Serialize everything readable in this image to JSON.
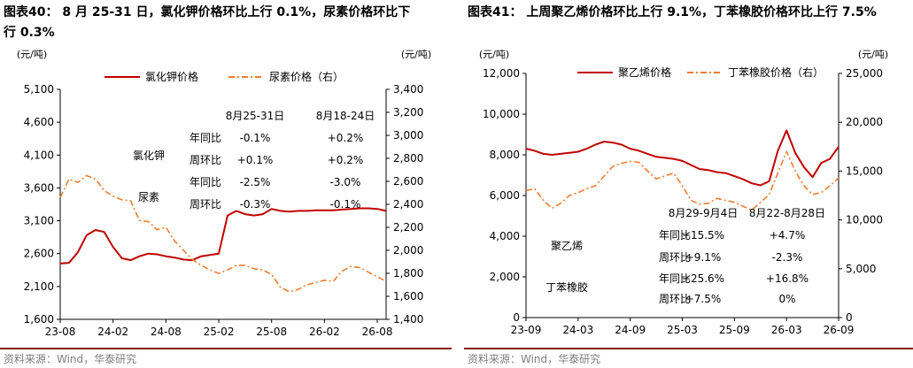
{
  "panels": [
    {
      "title_line1": "图表40：  8 月 25-31 日，氯化钾价格环比上行 0.1%，尿素价格环比下",
      "title_line2": "行 0.3%",
      "source": "资料来源：Wind，华泰研究",
      "chart_data": {
        "type": "line",
        "left_unit": "(元/吨)",
        "right_unit": "(元/吨)",
        "x_ticks": [
          "23-08",
          "24-02",
          "24-08",
          "25-02",
          "25-08",
          "26-02",
          "26-08"
        ],
        "x_range": [
          "2023-08",
          "2026-09"
        ],
        "ylim_left": [
          1600,
          5100
        ],
        "yticks_left": [
          "1,600",
          "2,100",
          "2,600",
          "3,100",
          "3,600",
          "4,100",
          "4,600",
          "5,100"
        ],
        "ylim_right": [
          1400,
          3400
        ],
        "yticks_right": [
          "1,400",
          "1,600",
          "1,800",
          "2,000",
          "2,200",
          "2,400",
          "2,600",
          "2,800",
          "3,000",
          "3,200",
          "3,400"
        ],
        "legend_position": "top",
        "series": [
          {
            "name": "氯化钾价格",
            "axis": "left",
            "color": "#c00000",
            "style": "solid",
            "points": [
              [
                "2023-08",
                2450
              ],
              [
                "2023-09",
                2460
              ],
              [
                "2023-10",
                2620
              ],
              [
                "2023-11",
                2880
              ],
              [
                "2023-12",
                2960
              ],
              [
                "2024-01",
                2930
              ],
              [
                "2024-02",
                2700
              ],
              [
                "2024-03",
                2530
              ],
              [
                "2024-04",
                2500
              ],
              [
                "2024-05",
                2560
              ],
              [
                "2024-06",
                2600
              ],
              [
                "2024-07",
                2590
              ],
              [
                "2024-08",
                2560
              ],
              [
                "2024-09",
                2540
              ],
              [
                "2024-10",
                2510
              ],
              [
                "2024-11",
                2500
              ],
              [
                "2024-12",
                2560
              ],
              [
                "2025-01",
                2580
              ],
              [
                "2025-02",
                2600
              ],
              [
                "2025-03",
                3180
              ],
              [
                "2025-04",
                3250
              ],
              [
                "2025-05",
                3200
              ],
              [
                "2025-06",
                3180
              ],
              [
                "2025-07",
                3200
              ],
              [
                "2025-08",
                3280
              ],
              [
                "2025-09",
                3250
              ],
              [
                "2025-10",
                3240
              ],
              [
                "2025-11",
                3250
              ],
              [
                "2025-12",
                3250
              ],
              [
                "2026-01",
                3260
              ],
              [
                "2026-02",
                3260
              ],
              [
                "2026-03",
                3260
              ],
              [
                "2026-04",
                3270
              ],
              [
                "2026-05",
                3280
              ],
              [
                "2026-06",
                3290
              ],
              [
                "2026-07",
                3290
              ],
              [
                "2026-08",
                3280
              ],
              [
                "2026-09",
                3250
              ]
            ]
          },
          {
            "name": "尿素价格（右）",
            "axis": "right",
            "color": "#ed7d31",
            "style": "dashdot",
            "points": [
              [
                "2023-08",
                2460
              ],
              [
                "2023-09",
                2620
              ],
              [
                "2023-10",
                2590
              ],
              [
                "2023-11",
                2650
              ],
              [
                "2023-12",
                2620
              ],
              [
                "2024-01",
                2520
              ],
              [
                "2024-02",
                2470
              ],
              [
                "2024-03",
                2440
              ],
              [
                "2024-04",
                2430
              ],
              [
                "2024-05",
                2260
              ],
              [
                "2024-06",
                2250
              ],
              [
                "2024-07",
                2180
              ],
              [
                "2024-08",
                2200
              ],
              [
                "2024-09",
                2080
              ],
              [
                "2024-10",
                2000
              ],
              [
                "2024-11",
                1920
              ],
              [
                "2024-12",
                1870
              ],
              [
                "2025-01",
                1830
              ],
              [
                "2025-02",
                1800
              ],
              [
                "2025-03",
                1830
              ],
              [
                "2025-04",
                1870
              ],
              [
                "2025-05",
                1870
              ],
              [
                "2025-06",
                1840
              ],
              [
                "2025-07",
                1830
              ],
              [
                "2025-08",
                1790
              ],
              [
                "2025-09",
                1680
              ],
              [
                "2025-10",
                1640
              ],
              [
                "2025-11",
                1660
              ],
              [
                "2025-12",
                1700
              ],
              [
                "2026-01",
                1720
              ],
              [
                "2026-02",
                1740
              ],
              [
                "2026-03",
                1730
              ],
              [
                "2026-04",
                1820
              ],
              [
                "2026-05",
                1860
              ],
              [
                "2026-06",
                1850
              ],
              [
                "2026-07",
                1810
              ],
              [
                "2026-08",
                1770
              ],
              [
                "2026-09",
                1730
              ]
            ]
          }
        ],
        "table": {
          "col_headers": [
            "8月25-31日",
            "8月18-24日"
          ],
          "groups": [
            {
              "name": "氯化钾",
              "rows": [
                {
                  "label": "年同比",
                  "values": [
                    "-0.1%",
                    "+0.2%"
                  ]
                },
                {
                  "label": "周环比",
                  "values": [
                    "+0.1%",
                    "+0.2%"
                  ]
                }
              ]
            },
            {
              "name": "尿素",
              "rows": [
                {
                  "label": "年同比",
                  "values": [
                    "-2.5%",
                    "-3.0%"
                  ]
                },
                {
                  "label": "周环比",
                  "values": [
                    "-0.3%",
                    "-0.1%"
                  ]
                }
              ]
            }
          ]
        }
      }
    },
    {
      "title_line1": "图表41：  上周聚乙烯价格环比上行 9.1%，丁苯橡胶价格环比上行 7.5%",
      "title_line2": "",
      "source": "资料来源：Wind，华泰研究",
      "chart_data": {
        "type": "line",
        "left_unit": "(元/吨)",
        "right_unit": "(元/吨)",
        "x_ticks": [
          "23-09",
          "24-03",
          "24-09",
          "25-03",
          "25-09",
          "26-03",
          "26-09"
        ],
        "x_range": [
          "2023-09",
          "2026-09"
        ],
        "ylim_left": [
          0,
          12000
        ],
        "yticks_left": [
          "0",
          "2,000",
          "4,000",
          "6,000",
          "8,000",
          "10,000",
          "12,000"
        ],
        "ylim_right": [
          0,
          25000
        ],
        "yticks_right": [
          "0",
          "5,000",
          "10,000",
          "15,000",
          "20,000",
          "25,000"
        ],
        "legend_position": "top",
        "series": [
          {
            "name": "聚乙烯价格",
            "axis": "left",
            "color": "#c00000",
            "style": "solid",
            "points": [
              [
                "2023-09",
                8300
              ],
              [
                "2023-10",
                8200
              ],
              [
                "2023-11",
                8050
              ],
              [
                "2023-12",
                8000
              ],
              [
                "2024-01",
                8050
              ],
              [
                "2024-02",
                8100
              ],
              [
                "2024-03",
                8150
              ],
              [
                "2024-04",
                8300
              ],
              [
                "2024-05",
                8500
              ],
              [
                "2024-06",
                8650
              ],
              [
                "2024-07",
                8600
              ],
              [
                "2024-08",
                8500
              ],
              [
                "2024-09",
                8300
              ],
              [
                "2024-10",
                8200
              ],
              [
                "2024-11",
                8050
              ],
              [
                "2024-12",
                7900
              ],
              [
                "2025-01",
                7850
              ],
              [
                "2025-02",
                7800
              ],
              [
                "2025-03",
                7700
              ],
              [
                "2025-04",
                7500
              ],
              [
                "2025-05",
                7300
              ],
              [
                "2025-06",
                7250
              ],
              [
                "2025-07",
                7150
              ],
              [
                "2025-08",
                7100
              ],
              [
                "2025-09",
                6950
              ],
              [
                "2025-10",
                6800
              ],
              [
                "2025-11",
                6600
              ],
              [
                "2025-12",
                6500
              ],
              [
                "2026-01",
                6700
              ],
              [
                "2026-02",
                8200
              ],
              [
                "2026-03",
                9200
              ],
              [
                "2026-04",
                8100
              ],
              [
                "2026-05",
                7400
              ],
              [
                "2026-06",
                6900
              ],
              [
                "2026-07",
                7600
              ],
              [
                "2026-08",
                7800
              ],
              [
                "2026-09",
                8400
              ]
            ]
          },
          {
            "name": "丁苯橡胶价格（右）",
            "axis": "right",
            "color": "#ed7d31",
            "style": "dashdot",
            "points": [
              [
                "2023-09",
                13000
              ],
              [
                "2023-10",
                13200
              ],
              [
                "2023-11",
                12000
              ],
              [
                "2023-12",
                11200
              ],
              [
                "2024-01",
                11700
              ],
              [
                "2024-02",
                12500
              ],
              [
                "2024-03",
                12800
              ],
              [
                "2024-04",
                13200
              ],
              [
                "2024-05",
                13500
              ],
              [
                "2024-06",
                14500
              ],
              [
                "2024-07",
                15500
              ],
              [
                "2024-08",
                15800
              ],
              [
                "2024-09",
                16000
              ],
              [
                "2024-10",
                15900
              ],
              [
                "2024-11",
                15000
              ],
              [
                "2024-12",
                14200
              ],
              [
                "2025-01",
                14500
              ],
              [
                "2025-02",
                14800
              ],
              [
                "2025-03",
                13500
              ],
              [
                "2025-04",
                12000
              ],
              [
                "2025-05",
                11600
              ],
              [
                "2025-06",
                11700
              ],
              [
                "2025-07",
                12200
              ],
              [
                "2025-08",
                12000
              ],
              [
                "2025-09",
                11800
              ],
              [
                "2025-10",
                11400
              ],
              [
                "2025-11",
                11000
              ],
              [
                "2025-12",
                11800
              ],
              [
                "2026-01",
                12600
              ],
              [
                "2026-02",
                14800
              ],
              [
                "2026-03",
                17000
              ],
              [
                "2026-04",
                15000
              ],
              [
                "2026-05",
                13500
              ],
              [
                "2026-06",
                12600
              ],
              [
                "2026-07",
                12800
              ],
              [
                "2026-08",
                13500
              ],
              [
                "2026-09",
                14300
              ]
            ]
          }
        ],
        "table": {
          "col_headers": [
            "8月29-9月4日",
            "8月22-8月28日"
          ],
          "groups": [
            {
              "name": "聚乙烯",
              "rows": [
                {
                  "label": "年同比",
                  "values": [
                    "+15.5%",
                    "+4.7%"
                  ]
                },
                {
                  "label": "周环比",
                  "values": [
                    "+9.1%",
                    "-2.3%"
                  ]
                }
              ]
            },
            {
              "name": "丁苯橡胶",
              "rows": [
                {
                  "label": "年同比",
                  "values": [
                    "+25.6%",
                    "+16.8%"
                  ]
                },
                {
                  "label": "周环比",
                  "values": [
                    "+7.5%",
                    "0%"
                  ]
                }
              ]
            }
          ]
        }
      }
    }
  ]
}
